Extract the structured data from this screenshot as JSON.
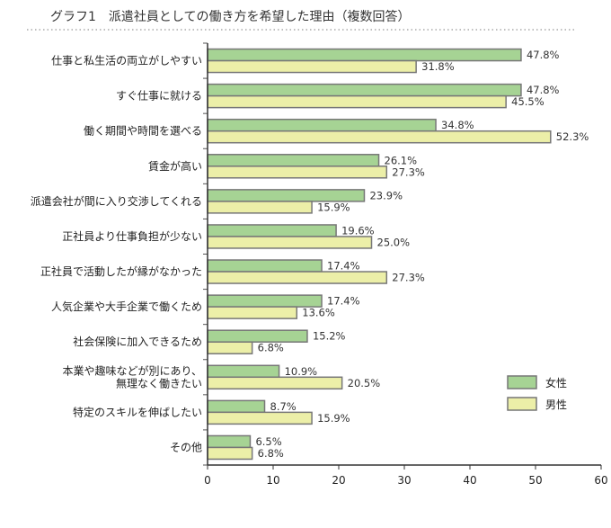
{
  "chart_data": {
    "type": "bar",
    "orientation": "horizontal",
    "title": "グラフ1　派遣社員としての働き方を希望した理由（複数回答）",
    "categories": [
      [
        "仕事と私生活の両立がしやすい"
      ],
      [
        "すぐ仕事に就ける"
      ],
      [
        "働く期間や時間を選べる"
      ],
      [
        "賃金が高い"
      ],
      [
        "派遣会社が間に入り交渉してくれる"
      ],
      [
        "正社員より仕事負担が少ない"
      ],
      [
        "正社員で活動したが縁がなかった"
      ],
      [
        "人気企業や大手企業で働くため"
      ],
      [
        "社会保険に加入できるため"
      ],
      [
        "本業や趣味などが別にあり、",
        "無理なく働きたい"
      ],
      [
        "特定のスキルを伸ばしたい"
      ],
      [
        "その他"
      ]
    ],
    "series": [
      {
        "name": "女性",
        "color": "#a6d394",
        "values": [
          47.8,
          47.8,
          34.8,
          26.1,
          23.9,
          19.6,
          17.4,
          17.4,
          15.2,
          10.9,
          8.7,
          6.5
        ],
        "labels": [
          "47.8%",
          "47.8%",
          "34.8%",
          "26.1%",
          "23.9%",
          "19.6%",
          "17.4%",
          "17.4%",
          "15.2%",
          "10.9%",
          "8.7%",
          "6.5%"
        ]
      },
      {
        "name": "男性",
        "color": "#ecefa8",
        "values": [
          31.8,
          45.5,
          52.3,
          27.3,
          15.9,
          25.0,
          27.3,
          13.6,
          6.8,
          20.5,
          15.9,
          6.8
        ],
        "labels": [
          "31.8%",
          "45.5%",
          "52.3%",
          "27.3%",
          "15.9%",
          "25.0%",
          "27.3%",
          "13.6%",
          "6.8%",
          "20.5%",
          "15.9%",
          "6.8%"
        ]
      }
    ],
    "xlim": [
      0,
      60
    ],
    "xticks": [
      "0",
      "10",
      "20",
      "30",
      "40",
      "50",
      "60"
    ],
    "grid": false,
    "legend_position": "right",
    "border_color": "#777777",
    "dotted_rule_color": "#999999"
  }
}
